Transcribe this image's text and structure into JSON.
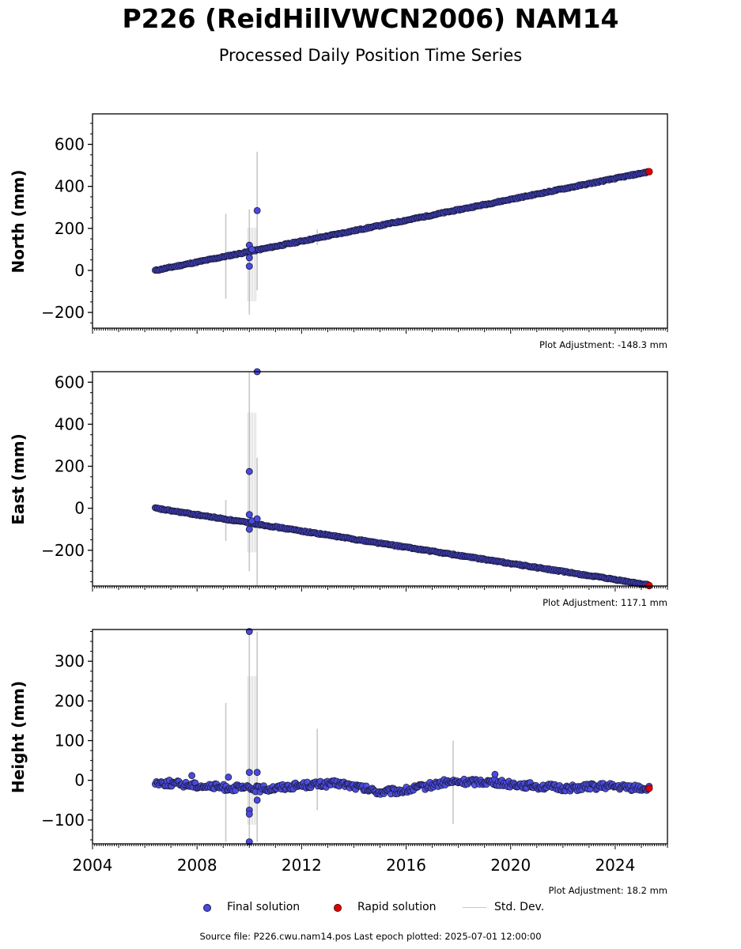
{
  "title": "P226 (ReidHillVWCN2006) NAM14",
  "subtitle": "Processed Daily Position Time Series",
  "footer": "Source file: P226.cwu.nam14.pos  Last epoch plotted: 2025-07-01 12:00:00",
  "legend": {
    "final": "Final solution",
    "rapid": "Rapid solution",
    "std": "Std. Dev."
  },
  "colors": {
    "final": "#4a4ae0",
    "rapid": "#e00000",
    "std": "#c8c8c8",
    "outline": "#1a1a3a"
  },
  "chart_data": [
    {
      "type": "scatter",
      "ylabel": "North (mm)",
      "adjustment": "Plot Adjustment: -148.3 mm",
      "xlim": [
        2004,
        2026
      ],
      "ylim": [
        -275,
        745
      ],
      "yticks": [
        -200,
        0,
        200,
        400,
        600
      ],
      "ytick_labels": [
        "−200",
        "0",
        "200",
        "400",
        "600"
      ],
      "trend": {
        "x": [
          2006.4,
          2025.3
        ],
        "y": [
          0,
          470
        ]
      },
      "outliers": [
        {
          "x": 2010.0,
          "y": 120
        },
        {
          "x": 2010.0,
          "y": 60
        },
        {
          "x": 2010.0,
          "y": 20
        },
        {
          "x": 2010.1,
          "y": 100
        },
        {
          "x": 2010.3,
          "y": 285
        }
      ],
      "std_bars": [
        {
          "x": 2009.1,
          "lo": -135,
          "hi": 270
        },
        {
          "x": 2010.0,
          "lo": -210,
          "hi": 290
        },
        {
          "x": 2010.3,
          "lo": -95,
          "hi": 565
        },
        {
          "x": 2012.6,
          "lo": 120,
          "hi": 195
        }
      ],
      "rapid": {
        "x": 2025.3,
        "y": 470
      }
    },
    {
      "type": "scatter",
      "ylabel": "East (mm)",
      "adjustment": "Plot Adjustment: 117.1 mm",
      "xlim": [
        2004,
        2026
      ],
      "ylim": [
        -370,
        650
      ],
      "yticks": [
        -200,
        0,
        200,
        400,
        600
      ],
      "ytick_labels": [
        "−200",
        "0",
        "200",
        "400",
        "600"
      ],
      "trend": {
        "x": [
          2006.4,
          2025.3
        ],
        "y": [
          0,
          -365
        ]
      },
      "outliers": [
        {
          "x": 2010.0,
          "y": 175
        },
        {
          "x": 2010.0,
          "y": -30
        },
        {
          "x": 2010.0,
          "y": -100
        },
        {
          "x": 2010.1,
          "y": -60
        },
        {
          "x": 2010.3,
          "y": 650
        },
        {
          "x": 2010.3,
          "y": -50
        }
      ],
      "std_bars": [
        {
          "x": 2009.1,
          "lo": -155,
          "hi": 40
        },
        {
          "x": 2010.0,
          "lo": -300,
          "hi": 650
        },
        {
          "x": 2010.3,
          "lo": -370,
          "hi": 240
        }
      ],
      "rapid": {
        "x": 2025.3,
        "y": -368
      }
    },
    {
      "type": "scatter",
      "ylabel": "Height (mm)",
      "adjustment": "Plot Adjustment: 18.2 mm",
      "xlim": [
        2004,
        2026
      ],
      "ylim": [
        -160,
        380
      ],
      "yticks": [
        -100,
        0,
        100,
        200,
        300
      ],
      "ytick_labels": [
        "−100",
        "0",
        "100",
        "200",
        "300"
      ],
      "profile": {
        "x": [
          2006.4,
          2007.5,
          2009.0,
          2010.5,
          2012.0,
          2013.5,
          2015.0,
          2016.0,
          2017.5,
          2019.0,
          2020.5,
          2022.0,
          2023.5,
          2025.3
        ],
        "y": [
          -5,
          -10,
          -18,
          -22,
          -12,
          -8,
          -30,
          -25,
          -5,
          -3,
          -12,
          -20,
          -15,
          -20
        ]
      },
      "outliers": [
        {
          "x": 2007.8,
          "y": 12
        },
        {
          "x": 2009.2,
          "y": 8
        },
        {
          "x": 2010.0,
          "y": 375
        },
        {
          "x": 2010.0,
          "y": 20
        },
        {
          "x": 2010.0,
          "y": -75
        },
        {
          "x": 2010.0,
          "y": -85
        },
        {
          "x": 2010.0,
          "y": -155
        },
        {
          "x": 2010.3,
          "y": 20
        },
        {
          "x": 2010.3,
          "y": -50
        },
        {
          "x": 2019.4,
          "y": 15
        }
      ],
      "std_bars": [
        {
          "x": 2009.1,
          "lo": -155,
          "hi": 195
        },
        {
          "x": 2010.0,
          "lo": -160,
          "hi": 375
        },
        {
          "x": 2010.3,
          "lo": -155,
          "hi": 375
        },
        {
          "x": 2012.6,
          "lo": -75,
          "hi": 130
        },
        {
          "x": 2017.8,
          "lo": -110,
          "hi": 100
        }
      ],
      "rapid": {
        "x": 2025.3,
        "y": -20
      }
    }
  ],
  "xticks": [
    2004,
    2008,
    2012,
    2016,
    2020,
    2024
  ],
  "xtick_labels": [
    "2004",
    "2008",
    "2012",
    "2016",
    "2020",
    "2024"
  ]
}
